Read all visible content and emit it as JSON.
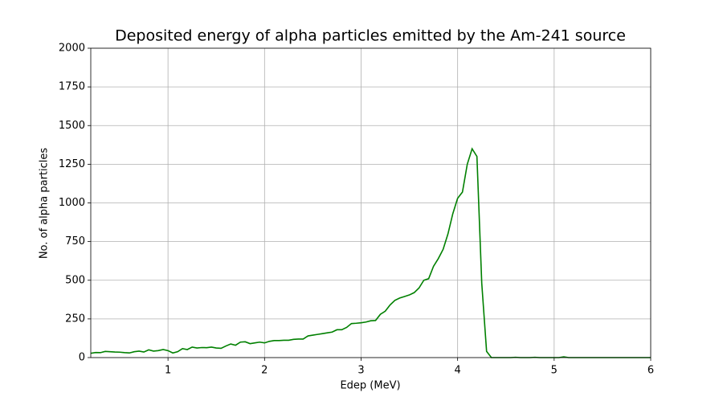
{
  "chart_data": {
    "type": "line",
    "title": "Deposited energy of alpha particles emitted by the Am-241 source",
    "xlabel": "Edep (MeV)",
    "ylabel": "No. of alpha particles",
    "x": [
      0.2,
      0.25,
      0.3,
      0.35,
      0.4,
      0.45,
      0.5,
      0.55,
      0.6,
      0.65,
      0.7,
      0.75,
      0.8,
      0.85,
      0.9,
      0.95,
      1.0,
      1.05,
      1.1,
      1.15,
      1.2,
      1.25,
      1.3,
      1.35,
      1.4,
      1.45,
      1.5,
      1.55,
      1.6,
      1.65,
      1.7,
      1.75,
      1.8,
      1.85,
      1.9,
      1.95,
      2.0,
      2.05,
      2.1,
      2.15,
      2.2,
      2.25,
      2.3,
      2.35,
      2.4,
      2.45,
      2.5,
      2.55,
      2.6,
      2.65,
      2.7,
      2.75,
      2.8,
      2.85,
      2.9,
      2.95,
      3.0,
      3.05,
      3.1,
      3.15,
      3.2,
      3.25,
      3.3,
      3.35,
      3.4,
      3.45,
      3.5,
      3.55,
      3.6,
      3.65,
      3.7,
      3.75,
      3.8,
      3.85,
      3.9,
      3.95,
      4.0,
      4.05,
      4.1,
      4.15,
      4.2,
      4.25,
      4.3,
      4.35,
      4.4,
      4.45,
      4.5,
      4.55,
      4.6,
      4.65,
      4.7,
      4.75,
      4.8,
      4.85,
      4.9,
      4.95,
      5.0,
      5.05,
      5.1,
      5.15,
      5.2,
      5.25,
      5.3,
      5.35,
      5.4,
      5.45,
      5.5,
      5.55,
      5.6,
      5.65,
      5.7,
      5.75,
      5.8,
      5.85,
      5.9,
      5.95,
      6.0
    ],
    "series": [
      {
        "name": "Edep",
        "color": "#008000",
        "values": [
          28,
          33,
          32,
          40,
          38,
          36,
          35,
          32,
          30,
          38,
          42,
          36,
          50,
          42,
          45,
          52,
          45,
          30,
          38,
          58,
          52,
          68,
          62,
          65,
          64,
          68,
          62,
          60,
          75,
          88,
          80,
          100,
          102,
          90,
          95,
          100,
          95,
          105,
          110,
          110,
          112,
          112,
          118,
          120,
          120,
          140,
          145,
          150,
          155,
          160,
          165,
          180,
          180,
          195,
          220,
          222,
          225,
          230,
          238,
          240,
          280,
          300,
          340,
          370,
          385,
          395,
          405,
          420,
          450,
          500,
          510,
          590,
          640,
          700,
          800,
          930,
          1030,
          1070,
          1250,
          1350,
          1300,
          480,
          40,
          0,
          0,
          0,
          0,
          0,
          2,
          0,
          0,
          0,
          2,
          0,
          0,
          0,
          0,
          0,
          5,
          0,
          0,
          0,
          0,
          0,
          0,
          0,
          0,
          0,
          0,
          0,
          0,
          0,
          0,
          0,
          0,
          0,
          0
        ]
      }
    ],
    "xlim": [
      0.2,
      6
    ],
    "ylim": [
      0,
      2000
    ],
    "xticks": [
      1,
      2,
      3,
      4,
      5,
      6
    ],
    "yticks": [
      0,
      250,
      500,
      750,
      1000,
      1250,
      1500,
      1750,
      2000
    ],
    "grid": true
  }
}
